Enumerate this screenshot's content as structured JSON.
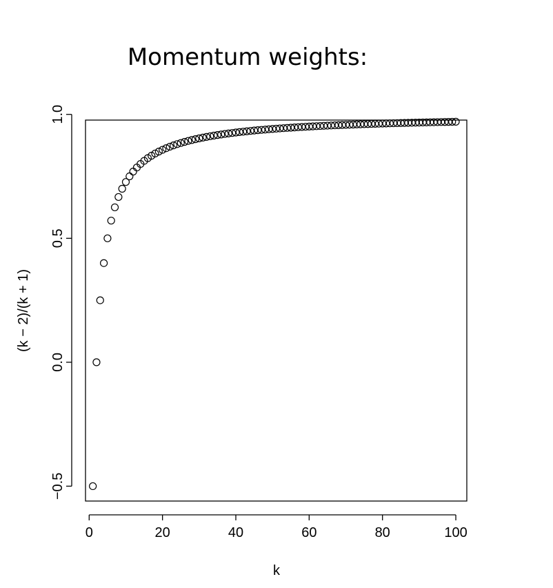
{
  "chart_data": {
    "type": "scatter",
    "title": "Momentum weights:",
    "xlabel": "k",
    "ylabel": "(k − 2)/(k + 1)",
    "xlim": [
      -1,
      103
    ],
    "ylim": [
      -0.56,
      0.977
    ],
    "x_ticks": [
      0,
      20,
      40,
      60,
      80,
      100
    ],
    "x_tick_labels": [
      "0",
      "20",
      "40",
      "60",
      "80",
      "100"
    ],
    "y_ticks": [
      -0.5,
      0.0,
      0.5,
      1.0
    ],
    "y_tick_labels": [
      "−0.5",
      "0.0",
      "0.5",
      "1.0"
    ],
    "grid": false,
    "legend": "none",
    "marker": "open-circle",
    "series": [
      {
        "x": [
          1,
          2,
          3,
          4,
          5,
          6,
          7,
          8,
          9,
          10,
          11,
          12,
          13,
          14,
          15,
          16,
          17,
          18,
          19,
          20,
          21,
          22,
          23,
          24,
          25,
          26,
          27,
          28,
          29,
          30,
          31,
          32,
          33,
          34,
          35,
          36,
          37,
          38,
          39,
          40,
          41,
          42,
          43,
          44,
          45,
          46,
          47,
          48,
          49,
          50,
          51,
          52,
          53,
          54,
          55,
          56,
          57,
          58,
          59,
          60,
          61,
          62,
          63,
          64,
          65,
          66,
          67,
          68,
          69,
          70,
          71,
          72,
          73,
          74,
          75,
          76,
          77,
          78,
          79,
          80,
          81,
          82,
          83,
          84,
          85,
          86,
          87,
          88,
          89,
          90,
          91,
          92,
          93,
          94,
          95,
          96,
          97,
          98,
          99,
          100
        ],
        "y": [
          -0.5,
          0.0,
          0.25,
          0.4,
          0.5,
          0.5714,
          0.625,
          0.6667,
          0.7,
          0.7273,
          0.75,
          0.7692,
          0.7857,
          0.8,
          0.8125,
          0.8235,
          0.8333,
          0.8421,
          0.85,
          0.8571,
          0.8636,
          0.8696,
          0.875,
          0.88,
          0.8846,
          0.8889,
          0.8929,
          0.8966,
          0.9,
          0.9032,
          0.9063,
          0.9091,
          0.9118,
          0.9143,
          0.9167,
          0.9189,
          0.9211,
          0.9231,
          0.925,
          0.9268,
          0.9286,
          0.9302,
          0.9318,
          0.9333,
          0.9348,
          0.9362,
          0.9375,
          0.9388,
          0.94,
          0.9412,
          0.9423,
          0.9434,
          0.9444,
          0.9455,
          0.9464,
          0.9474,
          0.9483,
          0.9492,
          0.95,
          0.9508,
          0.9516,
          0.9524,
          0.9531,
          0.9538,
          0.9545,
          0.9552,
          0.9559,
          0.9565,
          0.9571,
          0.9577,
          0.9583,
          0.9589,
          0.9595,
          0.96,
          0.9605,
          0.961,
          0.9615,
          0.962,
          0.9625,
          0.963,
          0.9634,
          0.9639,
          0.9643,
          0.9647,
          0.9651,
          0.9655,
          0.9659,
          0.9663,
          0.9667,
          0.967,
          0.9674,
          0.9677,
          0.9681,
          0.9684,
          0.9688,
          0.9691,
          0.9694,
          0.9697,
          0.97,
          0.9703
        ]
      }
    ]
  }
}
